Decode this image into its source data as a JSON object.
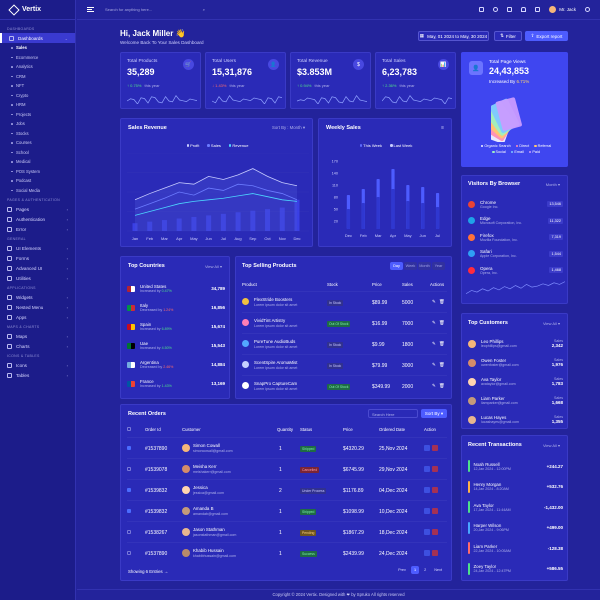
{
  "app": {
    "name": "Vertix"
  },
  "search": {
    "placeholder": "Search for anything here..."
  },
  "user": {
    "name": "Mr. Jack"
  },
  "header": {
    "greeting": "Hi, Jack Miller 👋",
    "subtitle": "Welcome Back To Your Sales Dashboard",
    "date_range": "May, 01 2024 to May, 30 2024",
    "filter": "Filter",
    "export": "Export report"
  },
  "sidebar": {
    "sections": [
      {
        "title": "DASHBOARDS",
        "items": [
          {
            "label": "Dashboards",
            "active": true,
            "sub": [
              "Sales",
              "Ecommerce",
              "Analytics",
              "CRM",
              "NFT",
              "Crypto",
              "HRM",
              "Projects",
              "Jobs",
              "Stocks",
              "Courses",
              "School",
              "Medical",
              "POS System",
              "Podcast",
              "Social Media"
            ]
          }
        ]
      },
      {
        "title": "PAGES & AUTHENTICATION",
        "items": [
          {
            "label": "Pages"
          },
          {
            "label": "Authentication"
          },
          {
            "label": "Error"
          }
        ]
      },
      {
        "title": "GENERAL",
        "items": [
          {
            "label": "UI Elements"
          },
          {
            "label": "Forms"
          },
          {
            "label": "Advanced UI"
          },
          {
            "label": "Utilities"
          }
        ]
      },
      {
        "title": "APPLICATIONS",
        "items": [
          {
            "label": "Widgets"
          },
          {
            "label": "Nested Menu"
          },
          {
            "label": "Apps"
          }
        ]
      },
      {
        "title": "MAPS & CHARTS",
        "items": [
          {
            "label": "Maps"
          },
          {
            "label": "Charts"
          }
        ]
      },
      {
        "title": "ICONS & TABLES",
        "items": [
          {
            "label": "Icons"
          },
          {
            "label": "Tables"
          }
        ]
      }
    ]
  },
  "stats": [
    {
      "label": "Total Products",
      "value": "35,289",
      "change": "↑ 0.75%",
      "period": "this year",
      "up": true,
      "icon": "🛒"
    },
    {
      "label": "Total Users",
      "value": "15,31,876",
      "change": "↓ 1.43%",
      "period": "this year",
      "up": false,
      "icon": "👤"
    },
    {
      "label": "Total Revenue",
      "value": "$3.853M",
      "change": "↑ 0.94%",
      "period": "this year",
      "up": true,
      "icon": "$"
    },
    {
      "label": "Total Sales",
      "value": "6,23,783",
      "change": "↑ 2.36%",
      "period": "this year",
      "up": true,
      "icon": "📊"
    }
  ],
  "page_views": {
    "title": "Total Page Views",
    "value": "24,43,853",
    "increase": "Increased By",
    "pct": "6.71%",
    "legend": [
      "Organic Search",
      "Direct",
      "Referral",
      "Social",
      "Email",
      "Paid"
    ],
    "colors": [
      "#f2f2ff",
      "#ff8fb3",
      "#ffc670",
      "#9ef0c0",
      "#7ec8ff",
      "#c99bff"
    ]
  },
  "sales_revenue": {
    "title": "Sales Revenue",
    "sort": "Sort By : Month",
    "legend": [
      "Profit",
      "Sales",
      "Revenue"
    ]
  },
  "weekly_sales": {
    "title": "Weekly Sales",
    "legend": [
      "This Week",
      "Last Week"
    ]
  },
  "top_countries": {
    "title": "Top Countries",
    "view": "View All",
    "items": [
      {
        "name": "United States",
        "status": "Increased by",
        "pct": "0.47%",
        "up": true,
        "value": "34,789"
      },
      {
        "name": "Italy",
        "status": "Decreased by",
        "pct": "1.24%",
        "up": false,
        "value": "16,856"
      },
      {
        "name": "Spain",
        "status": "Increased by",
        "pct": "6.89%",
        "up": true,
        "value": "15,674"
      },
      {
        "name": "Uae",
        "status": "Increased by",
        "pct": "4.50%",
        "up": true,
        "value": "15,543"
      },
      {
        "name": "Argentina",
        "status": "Decreased by",
        "pct": "2.46%",
        "up": false,
        "value": "14,884"
      },
      {
        "name": "France",
        "status": "Increased by",
        "pct": "1.43%",
        "up": true,
        "value": "13,169"
      }
    ]
  },
  "top_selling": {
    "title": "Top Selling Products",
    "tabs": [
      "Day",
      "Week",
      "Month",
      "Year"
    ],
    "columns": [
      "Product",
      "Stock",
      "Price",
      "Sales",
      "Actions"
    ],
    "rows": [
      {
        "name": "FlexStride Boosters",
        "desc": "Lorem ipsum dolor sit amet",
        "stock": "In Stock",
        "price": "$89.99",
        "sales": "5000"
      },
      {
        "name": "VividTint Artistry",
        "desc": "Lorem ipsum dolor sit amet",
        "stock": "Out Of Stock",
        "price": "$16.99",
        "sales": "7000"
      },
      {
        "name": "PureTune AudioBuds",
        "desc": "Lorem ipsum dolor sit amet",
        "stock": "In Stock",
        "price": "$9.99",
        "sales": "1800"
      },
      {
        "name": "ScentSpire AromaMist",
        "desc": "Lorem ipsum dolor sit amet",
        "stock": "In Stock",
        "price": "$79.99",
        "sales": "3000"
      },
      {
        "name": "SnapPro CaptureCam",
        "desc": "Lorem ipsum dolor sit amet",
        "stock": "Out Of Stock",
        "price": "$349.99",
        "sales": "2000"
      }
    ]
  },
  "visitors": {
    "title": "Visitors By Browser",
    "period": "Month",
    "items": [
      {
        "name": "Chrome",
        "company": "Google Inc.",
        "value": "13,546",
        "color": "#ea4335"
      },
      {
        "name": "Edge",
        "company": "Microsoft Corporation, Inc.",
        "value": "11,322",
        "color": "#1fa2e8"
      },
      {
        "name": "Firefox",
        "company": "Mozilla Foundation, Inc.",
        "value": "7,319",
        "color": "#ff7139"
      },
      {
        "name": "Safari",
        "company": "Apple Corporation, Inc.",
        "value": "1,544",
        "color": "#2fa0f5"
      },
      {
        "name": "Opera",
        "company": "Opera, Inc.",
        "value": "1,468",
        "color": "#ff2b3d"
      }
    ]
  },
  "customers": {
    "title": "Top Customers",
    "view": "View All",
    "items": [
      {
        "name": "Leo Phillips",
        "email": "leophillips@gmail.com",
        "label": "Sales",
        "value": "2,342"
      },
      {
        "name": "Owen Foster",
        "email": "owenfoster@gmail.com",
        "label": "Sales",
        "value": "1,976"
      },
      {
        "name": "Ava Taylor",
        "email": "avataylor@gmail.com",
        "label": "Sales",
        "value": "1,783"
      },
      {
        "name": "Liam Parker",
        "email": "liamparker@gmail.com",
        "label": "Sales",
        "value": "1,668"
      },
      {
        "name": "Lucas Hayes",
        "email": "lucashayes@gmail.com",
        "label": "Sales",
        "value": "1,355"
      }
    ]
  },
  "orders": {
    "title": "Recent Orders",
    "search": "Search Here",
    "sort": "Sort By",
    "columns": [
      "Order Id",
      "Customer",
      "Quantity",
      "Status",
      "Price",
      "Ordered Date",
      "Action"
    ],
    "rows": [
      {
        "checked": true,
        "id": "#1537890",
        "name": "Simon Cowall",
        "email": "simoncowall@gmail.com",
        "qty": "1",
        "status": "Shipped",
        "price": "$4320.29",
        "date": "25,Nov 2024"
      },
      {
        "checked": false,
        "id": "#1539078",
        "name": "Meisha Kerr",
        "email": "meishakerr@gmail.com",
        "qty": "1",
        "status": "Cancelled",
        "price": "$6745.99",
        "date": "29,Nov 2024"
      },
      {
        "checked": true,
        "id": "#1539832",
        "name": "Jessica",
        "email": "jessica@gmail.com",
        "qty": "2",
        "status": "Under Process",
        "price": "$1176.89",
        "date": "04,Dec 2024"
      },
      {
        "checked": true,
        "id": "#1539832",
        "name": "Amanda B",
        "email": "amandab@gmail.com",
        "qty": "1",
        "status": "Shipped",
        "price": "$1098.99",
        "date": "10,Dec 2024"
      },
      {
        "checked": false,
        "id": "#1538267",
        "name": "Jason Stathman",
        "email": "jasonstathman@gmail.com",
        "qty": "1",
        "status": "Pending",
        "price": "$1867.29",
        "date": "18,Dec 2024"
      },
      {
        "checked": false,
        "id": "#1537890",
        "name": "Khabib Hussain",
        "email": "khabibhussain@gmail.com",
        "qty": "1",
        "status": "Success",
        "price": "$2439.99",
        "date": "24,Dec 2024"
      }
    ],
    "showing": "Showing 6 Entries →",
    "pages": [
      "Prev",
      "1",
      "2",
      "Next"
    ]
  },
  "transactions": {
    "title": "Recent Transactions",
    "view": "View All",
    "items": [
      {
        "name": "Noah Russell",
        "date": "12,Jan 2024 - 12:00PM",
        "amount": "+244.27",
        "color": "#4ee08a"
      },
      {
        "name": "Henry Morgan",
        "date": "14,Jan 2024 - 8:20AM",
        "amount": "+532.76",
        "color": "#ffb347"
      },
      {
        "name": "Ava Taylor",
        "date": "17,Jan 2024 - 11:44AM",
        "amount": "-1,432.00",
        "color": "#4ee08a"
      },
      {
        "name": "Harper Wilson",
        "date": "20,Jan 2024 - 9:06PM",
        "amount": "+499.00",
        "color": "#49a6ff"
      },
      {
        "name": "Liam Parker",
        "date": "22,Jan 2024 - 10:05AM",
        "amount": "-128.38",
        "color": "#ff6b6b"
      },
      {
        "name": "Zoey Taylor",
        "date": "24,Jan 2024 - 12:47PM",
        "amount": "+586.55",
        "color": "#4ee08a"
      }
    ]
  },
  "footer": {
    "text": "Copyright © 2024 Vertix. Designed with ❤ by Spruko All rights reserved"
  },
  "chart_data": [
    {
      "type": "line",
      "title": "Sales Revenue",
      "categories": [
        "Jan",
        "Feb",
        "Mar",
        "Apr",
        "May",
        "Jun",
        "Jul",
        "Aug",
        "Sep",
        "Oct",
        "Nov",
        "Dec"
      ],
      "series": [
        {
          "name": "Profit",
          "values": [
            40,
            48,
            55,
            62,
            60,
            70,
            66,
            72,
            80,
            70,
            62,
            58
          ]
        },
        {
          "name": "Sales",
          "values": [
            28,
            35,
            42,
            50,
            46,
            55,
            52,
            60,
            58,
            52,
            48,
            40
          ]
        },
        {
          "name": "Revenue",
          "values": [
            20,
            25,
            30,
            35,
            38,
            40,
            42,
            45,
            48,
            44,
            40,
            38
          ]
        }
      ],
      "bars": [
        10,
        12,
        14,
        16,
        18,
        20,
        22,
        24,
        26,
        28,
        30,
        40
      ]
    },
    {
      "type": "bar",
      "title": "Weekly Sales",
      "categories": [
        "Dec",
        "Feb",
        "Mar",
        "Apr",
        "May",
        "Jun",
        "Jul"
      ],
      "yticks": [
        170,
        140,
        110,
        80,
        50,
        20
      ],
      "series": [
        {
          "name": "This Week",
          "values": [
            85,
            100,
            125,
            150,
            110,
            105,
            90
          ]
        },
        {
          "name": "Last Week",
          "values": [
            50,
            65,
            80,
            100,
            70,
            65,
            55
          ]
        }
      ]
    },
    {
      "type": "line",
      "title": "Visitors By Browser",
      "values": [
        30,
        42,
        36,
        48,
        40,
        52,
        44,
        56,
        48,
        60,
        50,
        64,
        54,
        58,
        66,
        60,
        70,
        64,
        74
      ]
    }
  ]
}
